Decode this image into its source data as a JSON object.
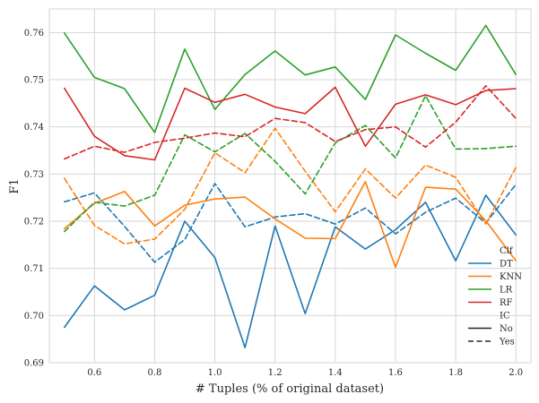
{
  "chart_data": {
    "type": "line",
    "xlabel": "# Tuples (% of original dataset)",
    "ylabel": "F1",
    "xlim": [
      0.45,
      2.05
    ],
    "ylim": [
      0.69,
      0.765
    ],
    "x_ticks": [
      0.6,
      0.8,
      1.0,
      1.2,
      1.4,
      1.6,
      1.8,
      2.0
    ],
    "x_tick_labels": [
      "0.6",
      "0.8",
      "1.0",
      "1.2",
      "1.4",
      "1.6",
      "1.8",
      "2.0"
    ],
    "y_ticks": [
      0.69,
      0.7,
      0.71,
      0.72,
      0.73,
      0.74,
      0.75,
      0.76
    ],
    "y_tick_labels": [
      "0.69",
      "0.70",
      "0.71",
      "0.72",
      "0.73",
      "0.74",
      "0.75",
      "0.76"
    ],
    "grid": true,
    "legend": {
      "placement": "lower-right",
      "hue_title": "Clf",
      "style_title": "IC",
      "style_entries": [
        {
          "label": "No",
          "dash": "solid"
        },
        {
          "label": "Yes",
          "dash": "dashed"
        }
      ]
    },
    "x": [
      0.5,
      0.6,
      0.7,
      0.8,
      0.9,
      1.0,
      1.1,
      1.2,
      1.3,
      1.4,
      1.5,
      1.6,
      1.7,
      1.8,
      1.9,
      2.0
    ],
    "series": [
      {
        "name": "DT",
        "ic": "No",
        "color": "#1f77b4",
        "values": [
          0.6975,
          0.7063,
          0.7012,
          0.7043,
          0.72,
          0.7123,
          0.6932,
          0.719,
          0.7004,
          0.7188,
          0.7141,
          0.7182,
          0.724,
          0.7116,
          0.7255,
          0.7171
        ]
      },
      {
        "name": "DT",
        "ic": "Yes",
        "color": "#1f77b4",
        "values": [
          0.7241,
          0.726,
          0.7189,
          0.7113,
          0.7161,
          0.728,
          0.7188,
          0.7209,
          0.7216,
          0.7194,
          0.7228,
          0.7173,
          0.7219,
          0.7249,
          0.7196,
          0.7278
        ]
      },
      {
        "name": "KNN",
        "ic": "No",
        "color": "#ff7f0e",
        "values": [
          0.7184,
          0.7238,
          0.7263,
          0.719,
          0.7234,
          0.7247,
          0.7251,
          0.7205,
          0.7164,
          0.7163,
          0.7284,
          0.7102,
          0.7272,
          0.7268,
          0.7201,
          0.7116
        ]
      },
      {
        "name": "KNN",
        "ic": "Yes",
        "color": "#ff7f0e",
        "values": [
          0.7291,
          0.7191,
          0.7152,
          0.7162,
          0.7225,
          0.7345,
          0.7303,
          0.7397,
          0.7306,
          0.722,
          0.7311,
          0.7249,
          0.7319,
          0.7293,
          0.7194,
          0.7314
        ]
      },
      {
        "name": "LR",
        "ic": "No",
        "color": "#2ca02c",
        "values": [
          0.7599,
          0.7505,
          0.7481,
          0.7388,
          0.7565,
          0.7437,
          0.7511,
          0.7561,
          0.751,
          0.7527,
          0.7458,
          0.7595,
          0.7556,
          0.752,
          0.7615,
          0.7511
        ]
      },
      {
        "name": "LR",
        "ic": "Yes",
        "color": "#2ca02c",
        "values": [
          0.7178,
          0.724,
          0.7232,
          0.7255,
          0.7383,
          0.7347,
          0.7386,
          0.7327,
          0.7258,
          0.7366,
          0.7403,
          0.7334,
          0.7466,
          0.7353,
          0.7354,
          0.7359
        ]
      },
      {
        "name": "RF",
        "ic": "No",
        "color": "#d62728",
        "values": [
          0.7482,
          0.738,
          0.7339,
          0.733,
          0.7482,
          0.7452,
          0.7469,
          0.7442,
          0.7428,
          0.7484,
          0.7359,
          0.7448,
          0.7468,
          0.7447,
          0.7477,
          0.7481
        ]
      },
      {
        "name": "RF",
        "ic": "Yes",
        "color": "#d62728",
        "values": [
          0.7332,
          0.7359,
          0.7346,
          0.7367,
          0.7376,
          0.7387,
          0.7379,
          0.7418,
          0.7409,
          0.7369,
          0.7394,
          0.74,
          0.7357,
          0.741,
          0.7487,
          0.7418
        ]
      }
    ]
  }
}
